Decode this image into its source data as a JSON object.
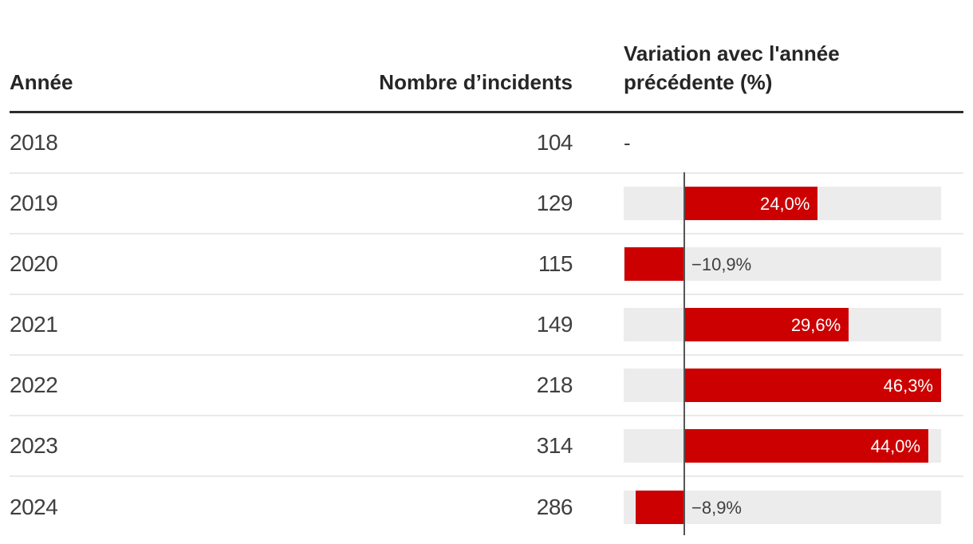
{
  "table": {
    "columns": [
      {
        "id": "year",
        "label": "Année"
      },
      {
        "id": "incidents",
        "label": "Nombre d’incidents"
      },
      {
        "id": "variation",
        "label": "Variation avec l'année précédente (%)"
      }
    ],
    "rows": [
      {
        "year": "2018",
        "incidents": "104",
        "variation": null,
        "variation_label": "-"
      },
      {
        "year": "2019",
        "incidents": "129",
        "variation": 24.0,
        "variation_label": "24,0%"
      },
      {
        "year": "2020",
        "incidents": "115",
        "variation": -10.9,
        "variation_label": "−10,9%"
      },
      {
        "year": "2021",
        "incidents": "149",
        "variation": 29.6,
        "variation_label": "29,6%"
      },
      {
        "year": "2022",
        "incidents": "218",
        "variation": 46.3,
        "variation_label": "46,3%"
      },
      {
        "year": "2023",
        "incidents": "314",
        "variation": 44.0,
        "variation_label": "44,0%"
      },
      {
        "year": "2024",
        "incidents": "286",
        "variation": -8.9,
        "variation_label": "−8,9%"
      }
    ]
  },
  "chart_data": {
    "type": "bar",
    "orientation": "horizontal",
    "title": "",
    "categories": [
      "2018",
      "2019",
      "2020",
      "2021",
      "2022",
      "2023",
      "2024"
    ],
    "series": [
      {
        "name": "Nombre d’incidents",
        "values": [
          104,
          129,
          115,
          149,
          218,
          314,
          286
        ]
      },
      {
        "name": "Variation avec l'année précédente (%)",
        "values": [
          null,
          24.0,
          -10.9,
          29.6,
          46.3,
          44.0,
          -8.9
        ]
      }
    ],
    "value_labels": [
      "-",
      "24,0%",
      "−10,9%",
      "29,6%",
      "46,3%",
      "44,0%",
      "−8,9%"
    ],
    "xlim": [
      -11.1,
      46.3
    ],
    "grid": false,
    "legend": false,
    "baseline_at_zero": true
  },
  "colors": {
    "bar_red": "#cc0000",
    "track_gray": "#ececec",
    "baseline_gray": "#555555",
    "header_text": "#262626",
    "body_text": "#3f3f3f",
    "header_rule": "#2d2d2d",
    "row_separator": "#e9e9e9"
  }
}
